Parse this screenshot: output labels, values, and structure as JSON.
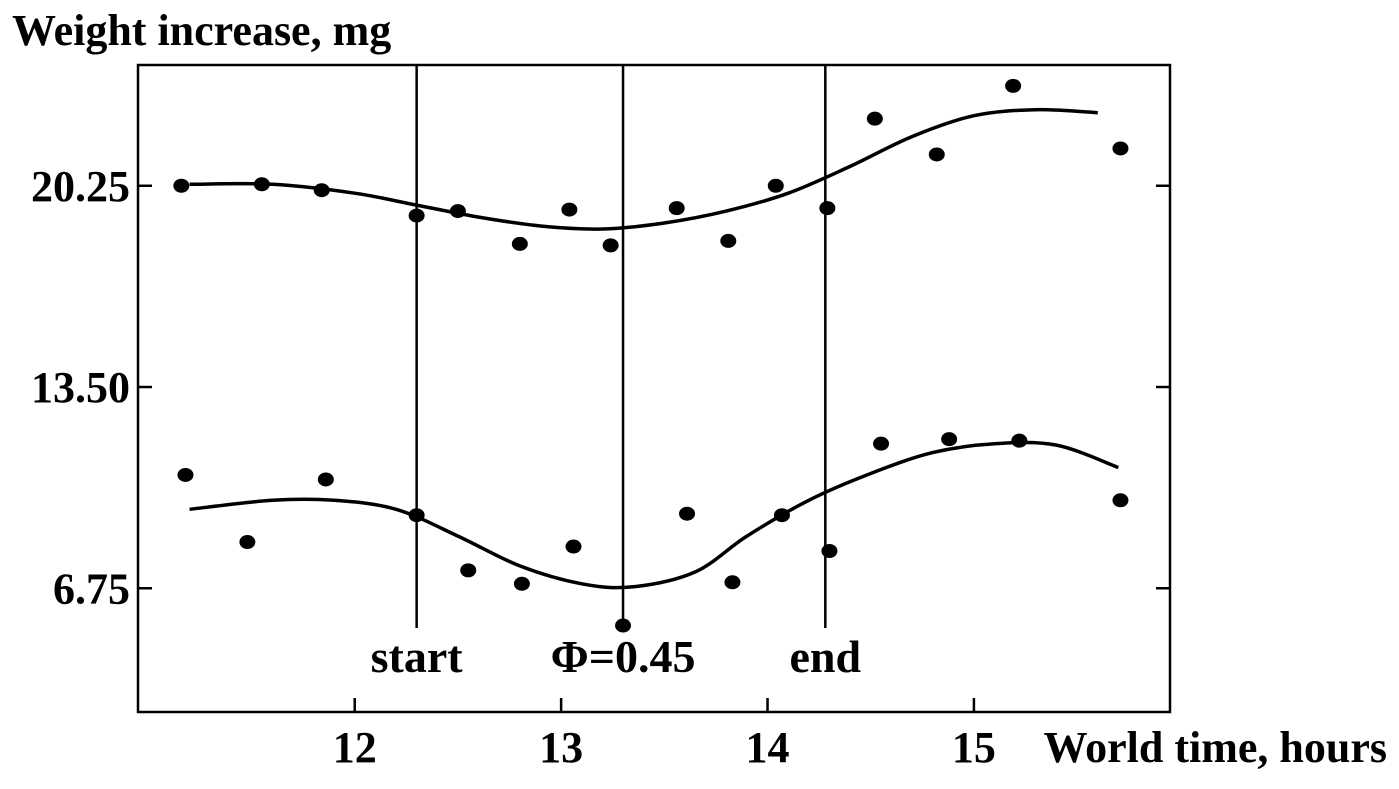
{
  "chart_data": {
    "type": "scatter",
    "title": "",
    "ylabel": "Weight increase, mg",
    "xlabel": "World time, hours",
    "xlim": [
      10.95,
      15.95
    ],
    "ylim": [
      2.6,
      24.3
    ],
    "x_ticks": [
      {
        "value": 12,
        "label": "12"
      },
      {
        "value": 13,
        "label": "13"
      },
      {
        "value": 14,
        "label": "14"
      },
      {
        "value": 15,
        "label": "15"
      }
    ],
    "y_ticks": [
      {
        "value": 6.75,
        "label": "6.75"
      },
      {
        "value": 13.5,
        "label": "13.50"
      },
      {
        "value": 20.25,
        "label": "20.25"
      }
    ],
    "grid": false,
    "legend": "none",
    "markers": [
      {
        "x": 12.3,
        "label": "start"
      },
      {
        "x": 13.3,
        "label": "Φ=0.45"
      },
      {
        "x": 14.28,
        "label": "end"
      }
    ],
    "series": [
      {
        "points": [
          [
            11.16,
            20.25
          ],
          [
            11.55,
            20.3
          ],
          [
            11.84,
            20.1
          ],
          [
            12.3,
            19.25
          ],
          [
            12.5,
            19.4
          ],
          [
            12.8,
            18.3
          ],
          [
            13.04,
            19.45
          ],
          [
            13.24,
            18.25
          ],
          [
            13.56,
            19.5
          ],
          [
            13.81,
            18.4
          ],
          [
            14.04,
            20.25
          ],
          [
            14.29,
            19.5
          ],
          [
            14.52,
            22.5
          ],
          [
            14.82,
            21.3
          ],
          [
            15.19,
            23.6
          ],
          [
            15.71,
            21.5
          ]
        ],
        "trend": [
          [
            11.2,
            20.3
          ],
          [
            11.6,
            20.3
          ],
          [
            12.0,
            20.0
          ],
          [
            12.3,
            19.6
          ],
          [
            12.6,
            19.2
          ],
          [
            12.9,
            18.9
          ],
          [
            13.2,
            18.8
          ],
          [
            13.5,
            19.0
          ],
          [
            13.8,
            19.4
          ],
          [
            14.1,
            20.0
          ],
          [
            14.4,
            20.9
          ],
          [
            14.7,
            21.9
          ],
          [
            15.0,
            22.6
          ],
          [
            15.3,
            22.8
          ],
          [
            15.6,
            22.7
          ]
        ]
      },
      {
        "points": [
          [
            11.18,
            10.55
          ],
          [
            11.48,
            8.3
          ],
          [
            11.86,
            10.4
          ],
          [
            12.3,
            9.2
          ],
          [
            12.55,
            7.35
          ],
          [
            12.81,
            6.9
          ],
          [
            13.06,
            8.15
          ],
          [
            13.3,
            5.5
          ],
          [
            13.61,
            9.25
          ],
          [
            13.83,
            6.95
          ],
          [
            14.07,
            9.2
          ],
          [
            14.3,
            8.0
          ],
          [
            14.55,
            11.6
          ],
          [
            14.88,
            11.75
          ],
          [
            15.22,
            11.7
          ],
          [
            15.71,
            9.7
          ]
        ],
        "trend": [
          [
            11.2,
            9.4
          ],
          [
            11.6,
            9.7
          ],
          [
            11.9,
            9.7
          ],
          [
            12.2,
            9.4
          ],
          [
            12.5,
            8.5
          ],
          [
            12.8,
            7.5
          ],
          [
            13.1,
            6.9
          ],
          [
            13.35,
            6.8
          ],
          [
            13.65,
            7.3
          ],
          [
            13.9,
            8.5
          ],
          [
            14.2,
            9.7
          ],
          [
            14.5,
            10.6
          ],
          [
            14.8,
            11.3
          ],
          [
            15.1,
            11.6
          ],
          [
            15.4,
            11.55
          ],
          [
            15.7,
            10.8
          ]
        ]
      }
    ]
  }
}
